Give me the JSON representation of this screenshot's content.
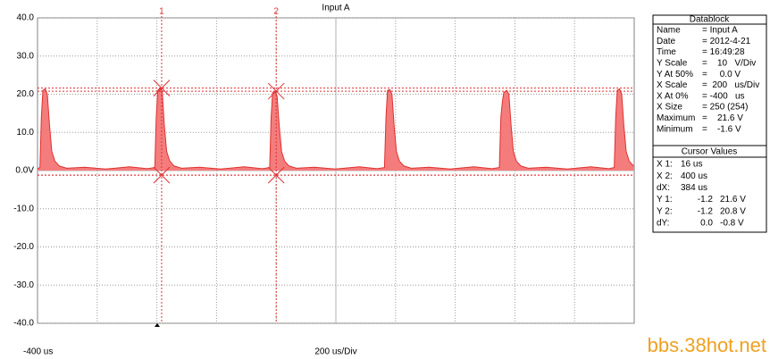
{
  "chart_data": {
    "type": "area",
    "title": "Input A",
    "x_start_label": "-400 us",
    "x_scale_label": "200 us/Div",
    "xlim": [
      -400,
      1600
    ],
    "x_divisions": 10,
    "ylim": [
      -40,
      40
    ],
    "yticks": [
      {
        "value": -40,
        "label": "-40.0"
      },
      {
        "value": -30,
        "label": "-30.0"
      },
      {
        "value": -20,
        "label": "-20.0"
      },
      {
        "value": -10,
        "label": "-10.0"
      },
      {
        "value": 0,
        "label": "0.0V"
      },
      {
        "value": 10,
        "label": "10.0"
      },
      {
        "value": 20,
        "label": "20.0"
      },
      {
        "value": 30,
        "label": "30.0"
      },
      {
        "value": 40,
        "label": "40.0"
      }
    ],
    "grid": true,
    "color": "#f47c7c",
    "line_color": "#e03030",
    "x": [
      -400,
      -392,
      -387,
      -382,
      -374,
      -367,
      -360,
      -352,
      -342,
      -327,
      -302,
      -242,
      -172,
      -92,
      -32,
      -7,
      -2,
      3,
      11,
      18,
      25,
      33,
      43,
      58,
      83,
      143,
      213,
      293,
      353,
      378,
      383,
      388,
      396,
      403,
      410,
      418,
      428,
      443,
      468,
      528,
      598,
      678,
      738,
      763,
      768,
      773,
      781,
      788,
      795,
      803,
      813,
      828,
      853,
      913,
      983,
      1063,
      1123,
      1148,
      1153,
      1158,
      1163,
      1173,
      1180,
      1187,
      1195,
      1205,
      1220,
      1245,
      1305,
      1375,
      1455,
      1515,
      1533,
      1538,
      1543,
      1551,
      1558,
      1565,
      1573,
      1583,
      1598
    ],
    "values": [
      0.5,
      0.8,
      14,
      21,
      21.4,
      20,
      12,
      5,
      2.5,
      1.2,
      0.6,
      0.9,
      0.4,
      1.0,
      0.5,
      0.8,
      14,
      21,
      21.6,
      20.8,
      12,
      5,
      2.5,
      1.2,
      0.6,
      0.9,
      0.4,
      1.0,
      0.5,
      0.8,
      14,
      20.5,
      20.8,
      19.5,
      12,
      5,
      2.5,
      1.2,
      0.6,
      0.9,
      0.4,
      1.0,
      0.5,
      0.8,
      14,
      21,
      21.2,
      20,
      12,
      5,
      2.5,
      1.2,
      0.6,
      0.9,
      0.4,
      1.0,
      0.5,
      0.8,
      14,
      18,
      20.5,
      21,
      20,
      12,
      5,
      2.5,
      1.2,
      0.6,
      0.9,
      0.4,
      1.0,
      0.5,
      0.8,
      14,
      21,
      21.4,
      20,
      12,
      5,
      2.5,
      1.2
    ],
    "cursors": [
      {
        "label": "1",
        "x": 16,
        "y": [
          21.6,
          -1.2
        ]
      },
      {
        "label": "2",
        "x": 400,
        "y": [
          20.8,
          -1.2
        ]
      }
    ]
  },
  "datablock": {
    "title": "Datablock",
    "rows": [
      [
        "Name",
        "= Input A"
      ],
      [
        "Date",
        "= 2012-4-21"
      ],
      [
        "Time",
        "= 16:49:28"
      ],
      [
        "Y Scale",
        "=    10   V/Div"
      ],
      [
        "Y At 50%",
        "=     0.0 V"
      ],
      [
        "X Scale",
        "=  200   us/Div"
      ],
      [
        "X At 0%",
        "= -400   us"
      ],
      [
        "X Size",
        "= 250 (254)"
      ],
      [
        "Maximum",
        "=    21.6 V"
      ],
      [
        "Minimum",
        "=    -1.6 V"
      ]
    ]
  },
  "cursor_values": {
    "title": "Cursor Values",
    "rows": [
      [
        "X 1:",
        "16 us"
      ],
      [
        "X 2:",
        "400 us"
      ],
      [
        "dX:",
        "384 us"
      ],
      [
        "Y 1:",
        "-1.2",
        "21.6 V"
      ],
      [
        "Y 2:",
        "-1.2",
        "20.8 V"
      ],
      [
        "dY:",
        "0.0",
        "-0.8 V"
      ]
    ]
  },
  "watermark": "bbs.38hot.net"
}
